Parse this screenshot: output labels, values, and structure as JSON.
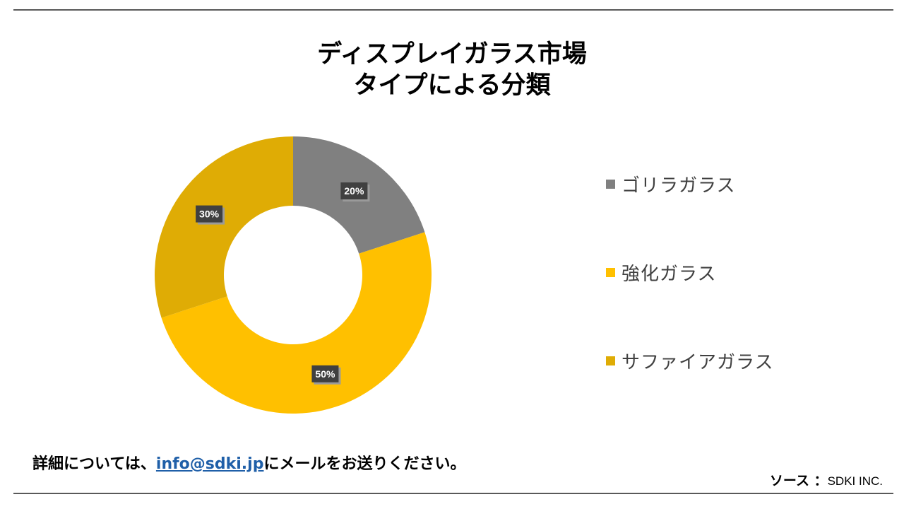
{
  "title": {
    "line1": "ディスプレイガラス市場",
    "line2": "タイプによる分類"
  },
  "chart_data": {
    "type": "pie",
    "donut": true,
    "title": "ディスプレイガラス市場 タイプによる分類",
    "categories": [
      "ゴリラガラス",
      "強化ガラス",
      "サファイアガラス"
    ],
    "values": [
      20,
      50,
      30
    ],
    "value_labels": [
      "20%",
      "50%",
      "30%"
    ],
    "colors": [
      "#808080",
      "#ffc000",
      "#dfac05"
    ],
    "legend_position": "right"
  },
  "legend": {
    "items": [
      {
        "label": "ゴリラガラス",
        "color": "#808080"
      },
      {
        "label": "強化ガラス",
        "color": "#ffc000"
      },
      {
        "label": "サファイアガラス",
        "color": "#dfac05"
      }
    ]
  },
  "footer": {
    "contact_prefix": "詳細については、",
    "contact_email": "info@sdki.jp",
    "contact_suffix": "にメールをお送りください。",
    "source_label": "ソース ：",
    "source_value": "SDKI INC."
  }
}
